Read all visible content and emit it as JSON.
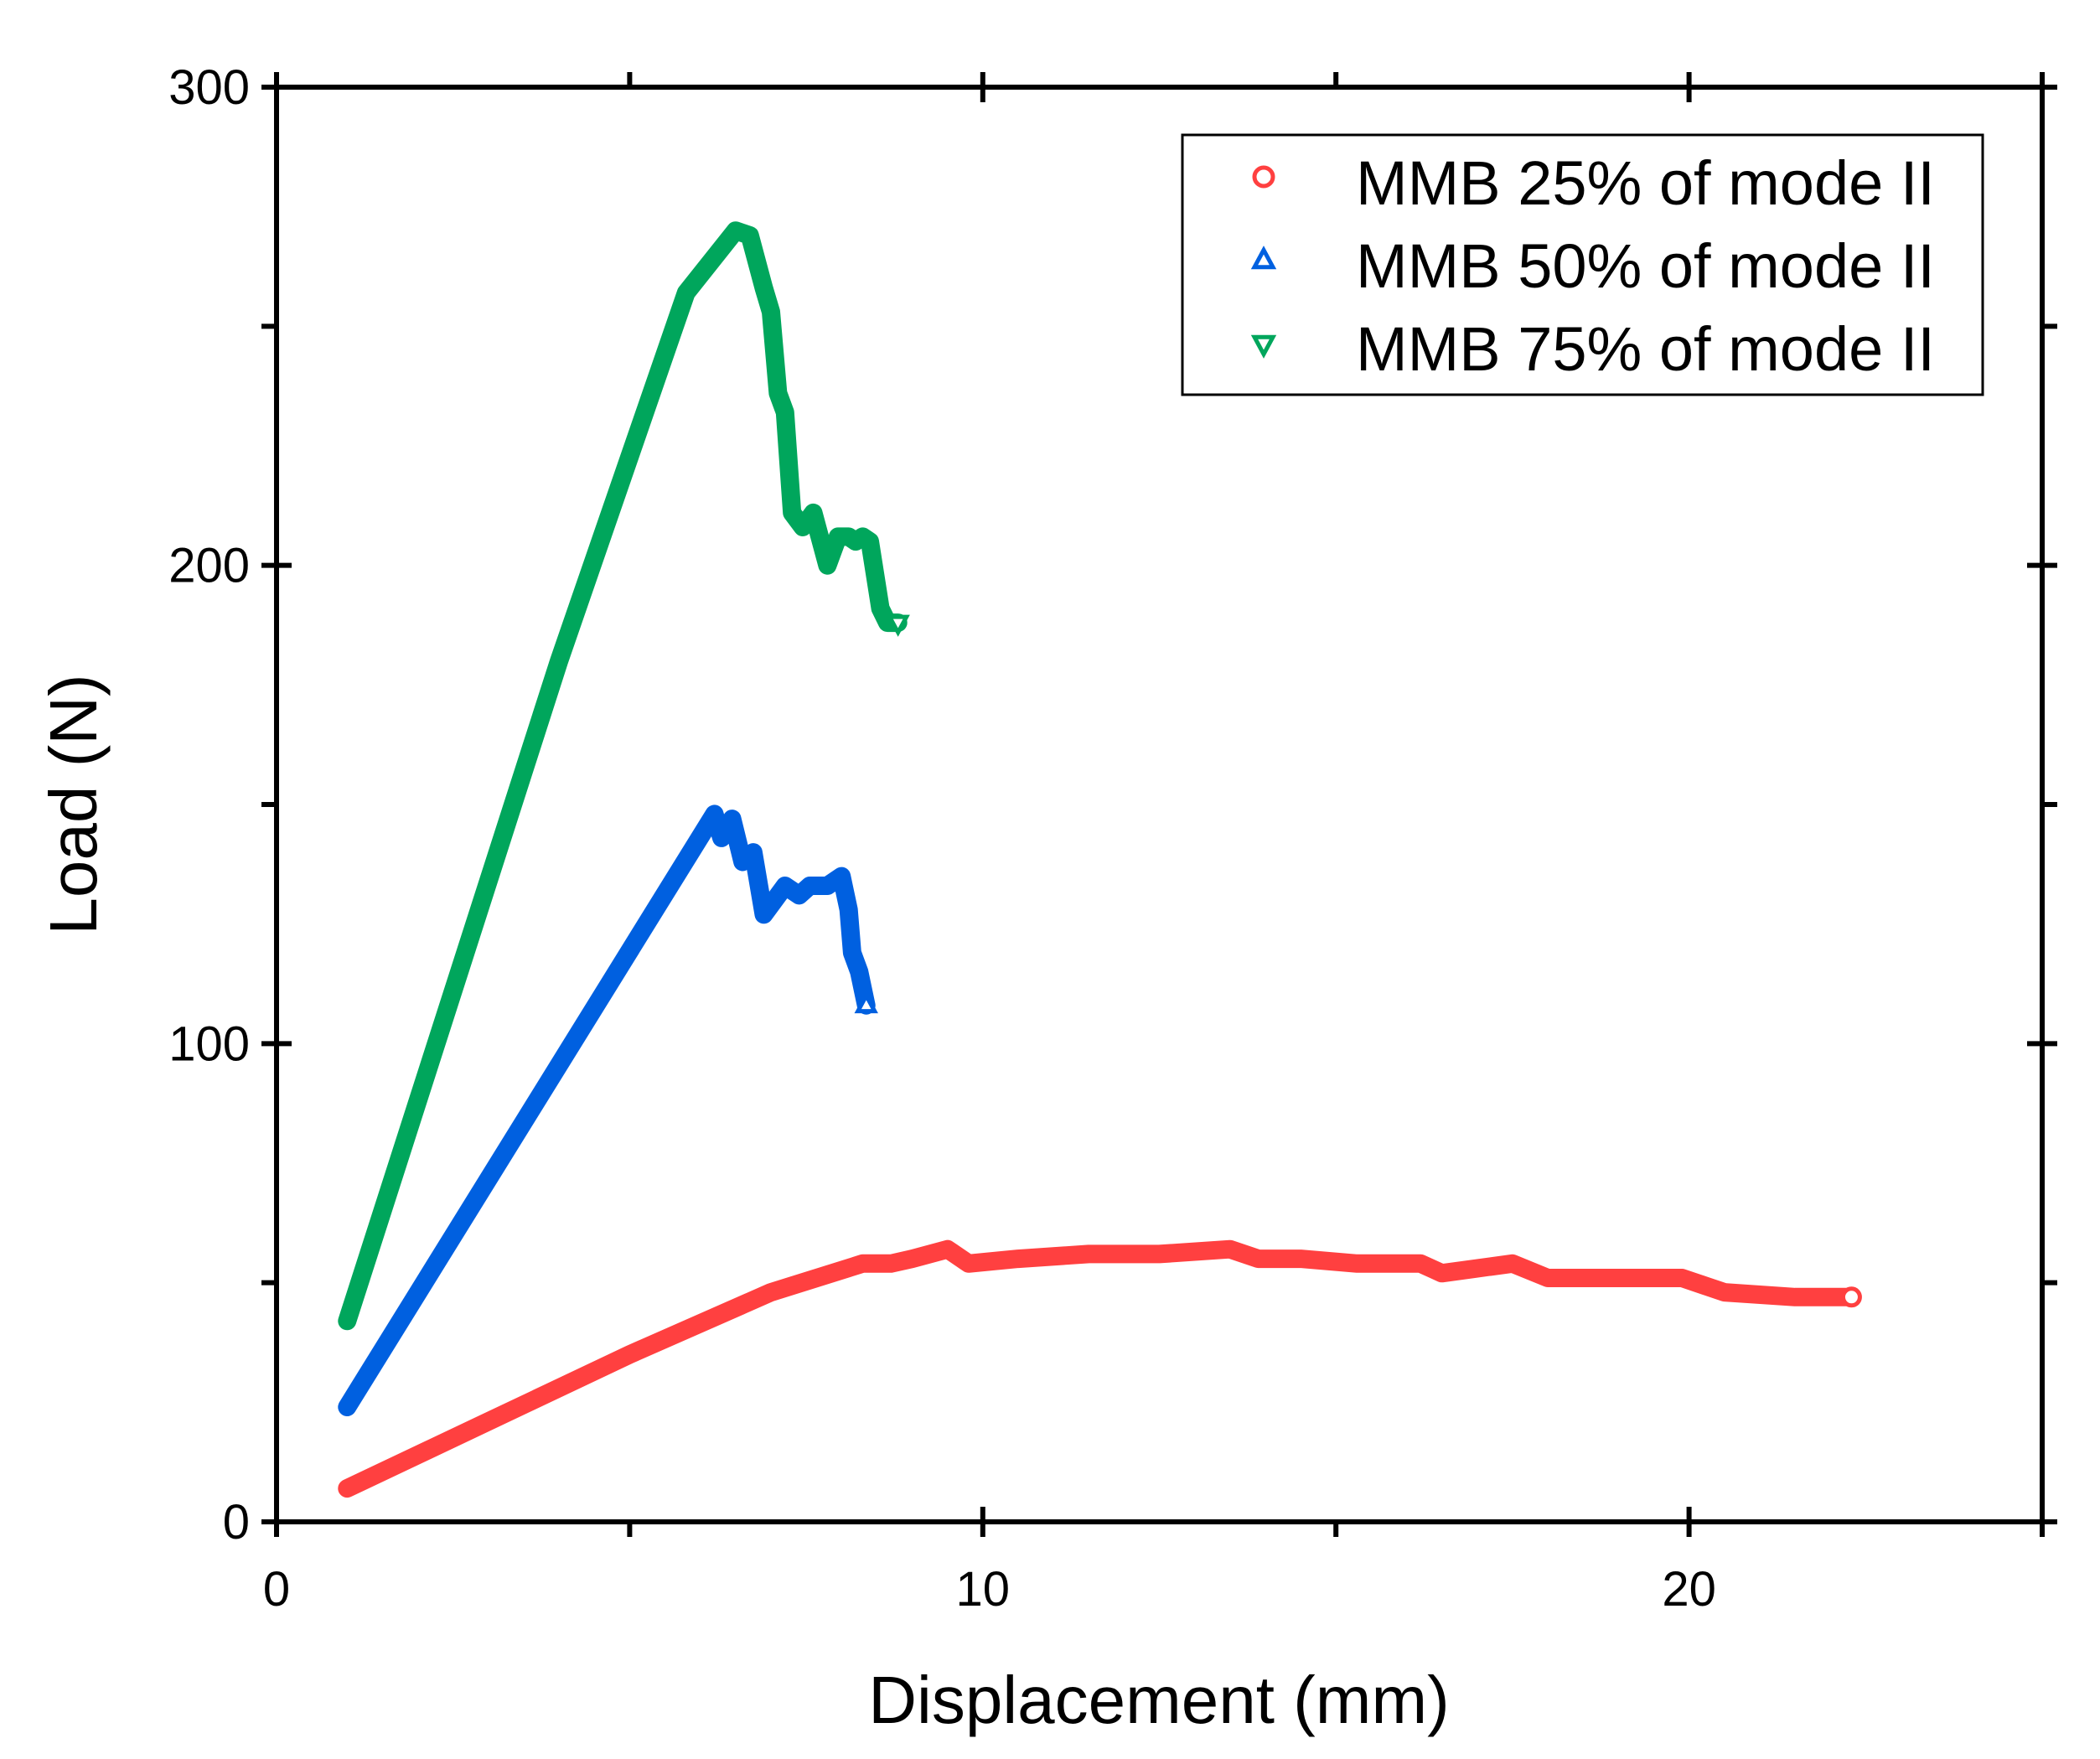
{
  "chart_data": {
    "type": "line",
    "xlabel": "Displacement (mm)",
    "ylabel": "Load (N)",
    "xlim": [
      0,
      25
    ],
    "ylim": [
      0,
      300
    ],
    "x_ticks": [
      "0",
      "10",
      "20"
    ],
    "x_tick_values": [
      0,
      10,
      20
    ],
    "x_minor_ticks": [
      5,
      15,
      25
    ],
    "y_ticks": [
      "0",
      "100",
      "200",
      "300"
    ],
    "y_tick_values": [
      0,
      100,
      200,
      300
    ],
    "y_minor_ticks": [
      50,
      150,
      250
    ],
    "legend_position": "top-right",
    "series": [
      {
        "name": "MMB 25% of mode II",
        "color": "#ff4040",
        "marker": "circle",
        "x": [
          1.0,
          3.0,
          5.0,
          7.0,
          8.3,
          8.7,
          9.0,
          9.5,
          9.8,
          10.5,
          11.5,
          12.5,
          13.5,
          13.9,
          14.5,
          15.3,
          16.2,
          16.5,
          17.5,
          18.0,
          19.0,
          19.9,
          20.5,
          21.5,
          22.3
        ],
        "y": [
          7,
          21,
          35,
          48,
          54,
          54,
          55,
          57,
          54,
          55,
          56,
          56,
          57,
          55,
          55,
          54,
          54,
          52,
          54,
          51,
          51,
          51,
          48,
          47,
          47
        ]
      },
      {
        "name": "MMB 50% of mode II",
        "color": "#0060e0",
        "marker": "triangle-up",
        "x": [
          1.0,
          6.2,
          6.3,
          6.45,
          6.6,
          6.75,
          6.9,
          7.05,
          7.2,
          7.4,
          7.55,
          7.8,
          8.0,
          8.1,
          8.15,
          8.25,
          8.35
        ],
        "y": [
          24,
          148,
          143,
          147,
          138,
          140,
          127,
          130,
          133,
          131,
          133,
          133,
          135,
          128,
          119,
          115,
          108
        ]
      },
      {
        "name": "MMB 75% of mode II",
        "color": "#00a65c",
        "marker": "triangle-down",
        "x": [
          1.0,
          4.0,
          5.8,
          6.5,
          6.7,
          6.9,
          7.0,
          7.1,
          7.2,
          7.3,
          7.45,
          7.6,
          7.8,
          7.95,
          8.1,
          8.2,
          8.3,
          8.4,
          8.55,
          8.65,
          8.8
        ],
        "y": [
          42,
          180,
          257,
          270,
          269,
          258,
          253,
          236,
          232,
          211,
          208,
          211,
          200,
          206,
          206,
          205,
          206,
          205,
          191,
          188,
          188
        ]
      }
    ]
  }
}
